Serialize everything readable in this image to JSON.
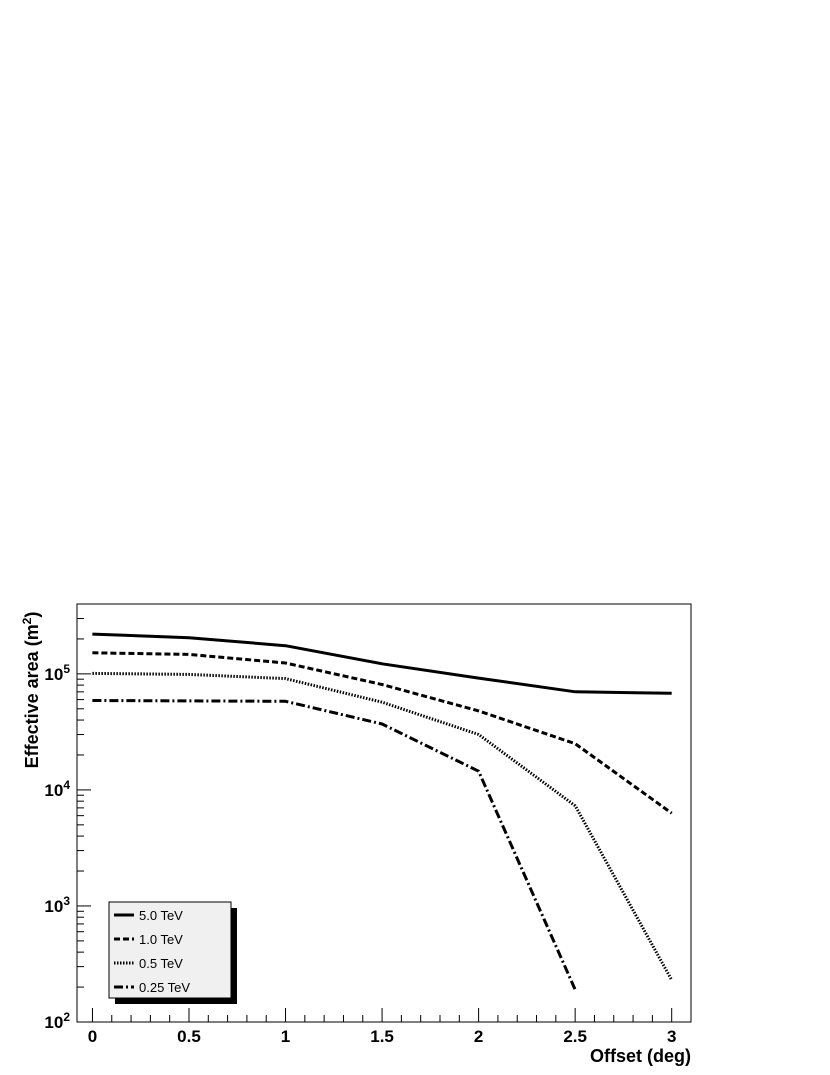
{
  "chart_data": {
    "type": "line",
    "xlabel": "Offset (deg)",
    "ylabel_main": "Effective area (m",
    "ylabel_sup": "2",
    "ylabel_close": ")",
    "xlim": [
      -0.08,
      3.1
    ],
    "ylim": [
      100,
      400000
    ],
    "y_scale": "log",
    "grid": false,
    "legend_position": "bottom-left",
    "x_ticks": [
      {
        "value": 0,
        "label": "0"
      },
      {
        "value": 0.5,
        "label": "0.5"
      },
      {
        "value": 1,
        "label": "1"
      },
      {
        "value": 1.5,
        "label": "1.5"
      },
      {
        "value": 2,
        "label": "2"
      },
      {
        "value": 2.5,
        "label": "2.5"
      },
      {
        "value": 3,
        "label": "3"
      }
    ],
    "y_ticks": [
      {
        "value": 100,
        "base": "10",
        "exp": "2"
      },
      {
        "value": 1000,
        "base": "10",
        "exp": "3"
      },
      {
        "value": 10000,
        "base": "10",
        "exp": "4"
      },
      {
        "value": 100000,
        "base": "10",
        "exp": "5"
      }
    ],
    "x": [
      0,
      0.5,
      1,
      1.5,
      2,
      2.5,
      3
    ],
    "series": [
      {
        "name": "5.0 TeV",
        "style": "solid",
        "values": [
          220000,
          205000,
          175000,
          122000,
          92000,
          70000,
          68000
        ]
      },
      {
        "name": "1.0 TeV",
        "style": "dashed",
        "values": [
          152000,
          147000,
          124000,
          81000,
          48000,
          25000,
          6300
        ]
      },
      {
        "name": "0.5 TeV",
        "style": "dotted",
        "values": [
          101000,
          99000,
          91000,
          57000,
          30000,
          7300,
          230
        ]
      },
      {
        "name": "0.25 TeV",
        "style": "dashdot",
        "values": [
          59000,
          58500,
          58000,
          37000,
          14500,
          190,
          null
        ]
      }
    ],
    "colors": {
      "line": "#000000",
      "legend_bg": "#f0f0f0",
      "legend_shadow": "#000000"
    }
  }
}
